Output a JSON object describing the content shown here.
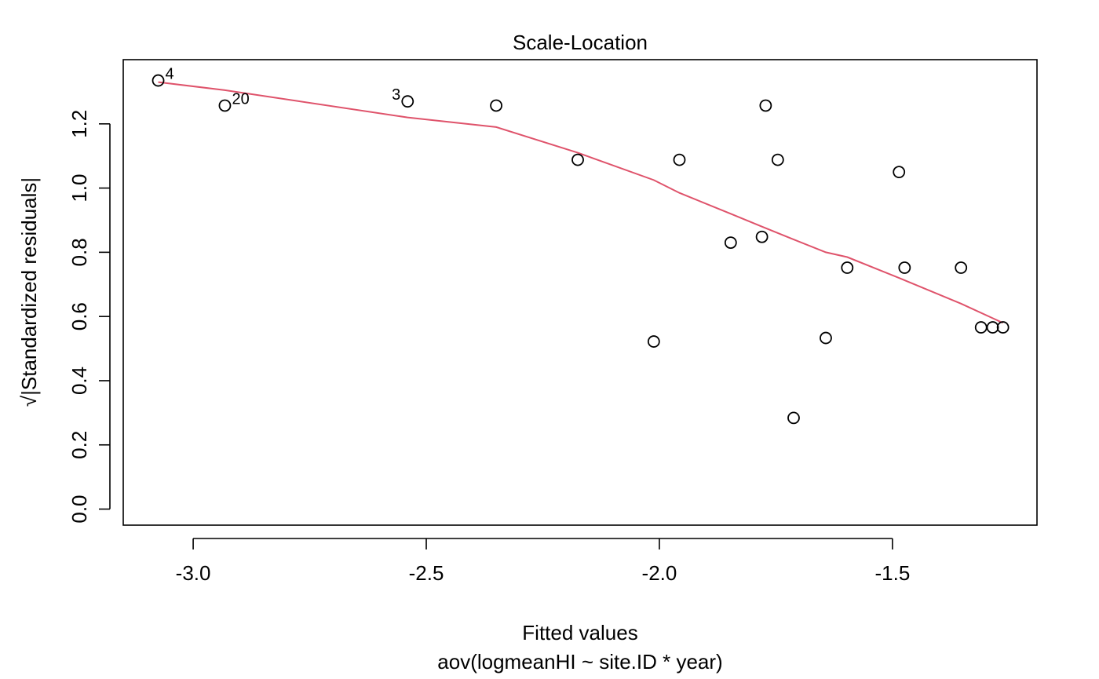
{
  "chart_data": {
    "type": "scatter",
    "title": "Scale-Location",
    "xlabel": "Fitted values",
    "subtitle": "aov(logmeanHI ~ site.ID * year)",
    "ylabel_sqrt": "√",
    "ylabel": "|Standardized residuals|",
    "xlim": [
      -3.15,
      -1.19
    ],
    "ylim": [
      -0.05,
      1.4
    ],
    "x_ticks": [
      -3.0,
      -2.5,
      -2.0,
      -1.5
    ],
    "x_tick_labels": [
      "-3.0",
      "-2.5",
      "-2.0",
      "-1.5"
    ],
    "y_ticks": [
      0.0,
      0.2,
      0.4,
      0.6,
      0.8,
      1.0,
      1.2
    ],
    "y_tick_labels": [
      "0.0",
      "0.2",
      "0.4",
      "0.6",
      "0.8",
      "1.0",
      "1.2"
    ],
    "grid": false,
    "points": [
      {
        "x": -3.075,
        "y": 1.335,
        "label": "4",
        "label_side": "right"
      },
      {
        "x": -2.932,
        "y": 1.257,
        "label": "20",
        "label_side": "right"
      },
      {
        "x": -2.54,
        "y": 1.27,
        "label": "3",
        "label_side": "left"
      },
      {
        "x": -2.35,
        "y": 1.257
      },
      {
        "x": -2.175,
        "y": 1.088
      },
      {
        "x": -2.012,
        "y": 0.522
      },
      {
        "x": -1.957,
        "y": 1.088
      },
      {
        "x": -1.847,
        "y": 0.83
      },
      {
        "x": -1.78,
        "y": 0.848
      },
      {
        "x": -1.772,
        "y": 1.257
      },
      {
        "x": -1.746,
        "y": 1.088
      },
      {
        "x": -1.712,
        "y": 0.284
      },
      {
        "x": -1.643,
        "y": 0.533
      },
      {
        "x": -1.597,
        "y": 0.752
      },
      {
        "x": -1.486,
        "y": 1.05
      },
      {
        "x": -1.474,
        "y": 0.752
      },
      {
        "x": -1.353,
        "y": 0.752
      },
      {
        "x": -1.31,
        "y": 0.566
      },
      {
        "x": -1.285,
        "y": 0.566
      },
      {
        "x": -1.263,
        "y": 0.566
      }
    ],
    "smoother": {
      "color": "#DF536B",
      "x": [
        -3.075,
        -2.932,
        -2.54,
        -2.35,
        -2.175,
        -2.012,
        -1.957,
        -1.847,
        -1.78,
        -1.712,
        -1.643,
        -1.597,
        -1.486,
        -1.353,
        -1.263
      ],
      "y": [
        1.33,
        1.305,
        1.22,
        1.19,
        1.11,
        1.025,
        0.985,
        0.92,
        0.88,
        0.84,
        0.8,
        0.785,
        0.72,
        0.64,
        0.58
      ]
    }
  }
}
